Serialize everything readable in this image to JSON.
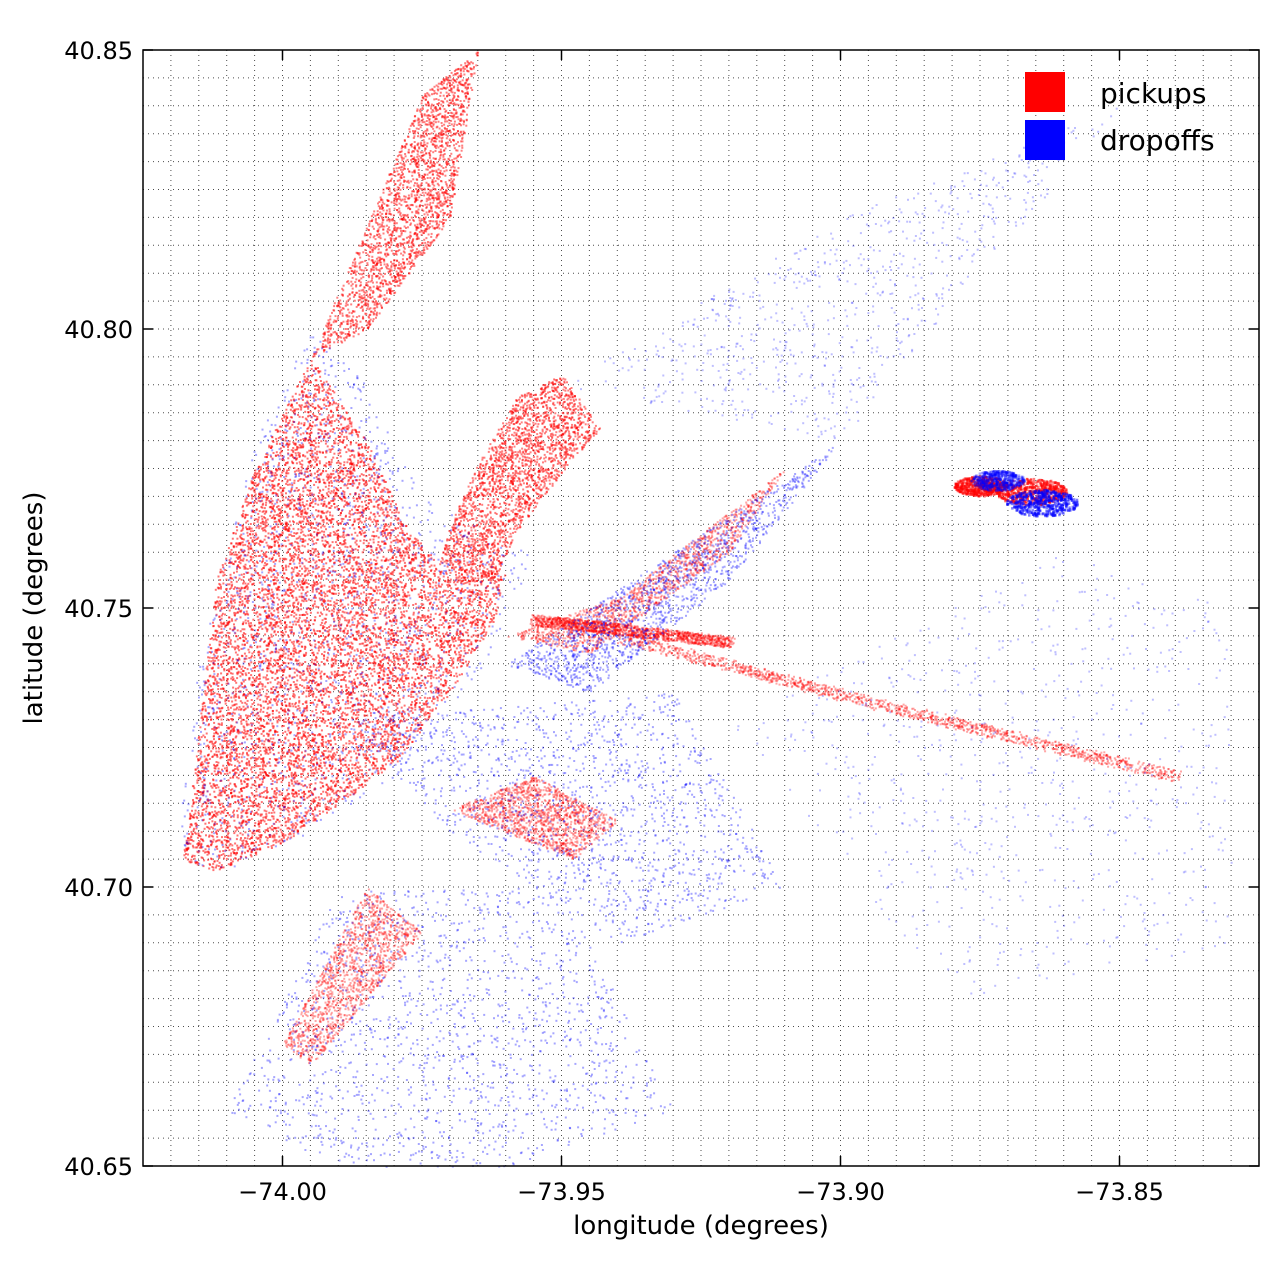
{
  "chart_data": {
    "type": "scatter",
    "title": "",
    "xlabel": "longitude (degrees)",
    "ylabel": "latitude (degrees)",
    "xlim": [
      -74.025,
      -73.825
    ],
    "ylim": [
      40.65,
      40.85
    ],
    "x_ticks": [
      -74.0,
      -73.95,
      -73.9,
      -73.85
    ],
    "x_tick_labels": [
      "−74.00",
      "−73.95",
      "−73.90",
      "−73.85"
    ],
    "y_ticks": [
      40.65,
      40.7,
      40.75,
      40.8,
      40.85
    ],
    "y_tick_labels": [
      "40.65",
      "40.70",
      "40.75",
      "40.80",
      "40.85"
    ],
    "grid": true,
    "legend_position": "top-right",
    "series": [
      {
        "name": "pickups",
        "color": "#ff0000",
        "regions": [
          {
            "kind": "polygon",
            "density": "very-high",
            "lon": [
              -74.018,
              -74.012,
              -74.0,
              -73.99,
              -73.98,
              -73.97,
              -73.962,
              -73.96,
              -73.972,
              -73.978,
              -73.985,
              -73.995,
              -74.005,
              -74.012,
              -74.016
            ],
            "lat": [
              40.705,
              40.703,
              40.708,
              40.715,
              40.722,
              40.735,
              40.748,
              40.756,
              40.758,
              40.765,
              40.78,
              40.795,
              40.775,
              40.755,
              40.72
            ]
          },
          {
            "kind": "polygon",
            "density": "high",
            "lon": [
              -73.972,
              -73.962,
              -73.958,
              -73.948,
              -73.943,
              -73.95,
              -73.958,
              -73.965,
              -73.97
            ],
            "lat": [
              40.758,
              40.755,
              40.764,
              40.777,
              40.782,
              40.792,
              40.788,
              40.776,
              40.765
            ]
          },
          {
            "kind": "polygon",
            "density": "high",
            "lon": [
              -73.995,
              -73.985,
              -73.97,
              -73.965,
              -73.975
            ],
            "lat": [
              40.795,
              40.8,
              40.82,
              40.85,
              40.842
            ]
          },
          {
            "kind": "polygon",
            "density": "medium",
            "lon": [
              -73.96,
              -73.94,
              -73.91,
              -73.92,
              -73.945
            ],
            "lat": [
              40.745,
              40.752,
              40.775,
              40.76,
              40.742
            ]
          },
          {
            "kind": "polygon",
            "density": "medium",
            "lon": [
              -73.97,
              -73.955,
              -73.94,
              -73.948
            ],
            "lat": [
              40.714,
              40.72,
              40.712,
              40.705
            ]
          },
          {
            "kind": "polygon",
            "density": "medium",
            "lon": [
              -74.0,
              -73.985,
              -73.975,
              -73.995
            ],
            "lat": [
              40.672,
              40.7,
              40.692,
              40.668
            ]
          },
          {
            "kind": "line",
            "density": "medium",
            "lon": [
              -73.94,
              -73.89,
              -73.84
            ],
            "lat": [
              40.745,
              40.732,
              40.72
            ]
          },
          {
            "kind": "line",
            "density": "medium",
            "lon": [
              -73.955,
              -73.92
            ],
            "lat": [
              40.748,
              40.744
            ]
          },
          {
            "kind": "blob",
            "density": "high",
            "lon": -73.866,
            "lat": 40.771,
            "radius": 0.004
          },
          {
            "kind": "blob",
            "density": "high",
            "lon": -73.875,
            "lat": 40.772,
            "radius": 0.003
          }
        ]
      },
      {
        "name": "dropoffs",
        "color": "#0000ff",
        "regions": [
          {
            "kind": "polygon",
            "density": "medium",
            "lon": [
              -74.02,
              -74.01,
              -73.995,
              -73.98,
              -73.968,
              -73.96,
              -73.955,
              -73.975,
              -73.985,
              -73.995,
              -74.005,
              -74.015
            ],
            "lat": [
              40.705,
              40.702,
              40.71,
              40.72,
              40.73,
              40.748,
              40.76,
              40.77,
              40.79,
              40.8,
              40.78,
              40.74
            ]
          },
          {
            "kind": "polygon",
            "density": "medium",
            "lon": [
              -73.96,
              -73.93,
              -73.9,
              -73.92,
              -73.945
            ],
            "lat": [
              40.74,
              40.76,
              40.78,
              40.755,
              40.735
            ]
          },
          {
            "kind": "polygon",
            "density": "medium",
            "lon": [
              -73.99,
              -73.93,
              -73.91,
              -73.94,
              -73.97
            ],
            "lat": [
              40.73,
              40.735,
              40.7,
              40.69,
              40.71
            ]
          },
          {
            "kind": "polygon",
            "density": "medium",
            "lon": [
              -74.01,
              -73.99,
              -73.95,
              -73.93,
              -73.96,
              -73.99
            ],
            "lat": [
              40.66,
              40.7,
              40.7,
              40.66,
              40.65,
              40.65
            ]
          },
          {
            "kind": "polygon",
            "density": "low",
            "lon": [
              -73.92,
              -73.86,
              -73.83,
              -73.83,
              -73.88
            ],
            "lat": [
              40.73,
              40.76,
              40.75,
              40.69,
              40.68
            ]
          },
          {
            "kind": "polygon",
            "density": "low",
            "lon": [
              -73.95,
              -73.9,
              -73.85,
              -73.9
            ],
            "lat": [
              40.79,
              40.82,
              40.84,
              40.78
            ]
          },
          {
            "kind": "blob",
            "density": "high",
            "lon": -73.864,
            "lat": 40.769,
            "radius": 0.004
          },
          {
            "kind": "blob",
            "density": "medium",
            "lon": -73.872,
            "lat": 40.773,
            "radius": 0.003
          }
        ]
      }
    ]
  }
}
